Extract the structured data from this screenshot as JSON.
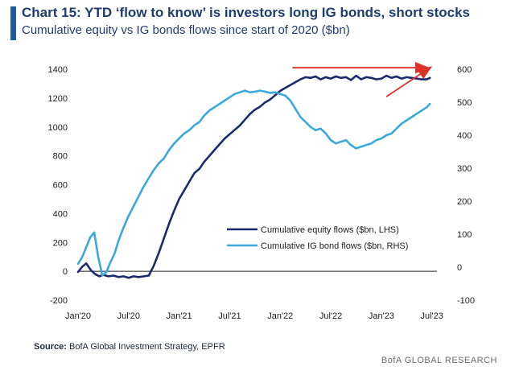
{
  "chart_data": {
    "type": "line",
    "title": "Chart 15: YTD ‘flow to know’ is investors long IG bonds, short stocks",
    "subtitle": "Cumulative equity vs IG bonds flows since start of 2020 ($bn)",
    "x_tick_labels": [
      "Jan'20",
      "Jul'20",
      "Jan'21",
      "Jul'21",
      "Jan'22",
      "Jul'22",
      "Jan'23",
      "Jul'23"
    ],
    "x_tick_positions": [
      2020.0,
      2020.5,
      2021.0,
      2021.5,
      2022.0,
      2022.5,
      2023.0,
      2023.5
    ],
    "xlim": [
      2020.0,
      2023.55
    ],
    "left_axis": {
      "ylim": [
        -200,
        1400
      ],
      "ticks": [
        -200,
        0,
        200,
        400,
        600,
        800,
        1000,
        1200,
        1400
      ]
    },
    "right_axis": {
      "ylim": [
        -100,
        600
      ],
      "ticks": [
        -100,
        0,
        100,
        200,
        300,
        400,
        500,
        600
      ]
    },
    "legend_position": "center-right",
    "grid": false,
    "series": [
      {
        "name": "Cumulative equity flows ($bn, LHS)",
        "axis": "left",
        "color": "#1b2a6b",
        "x": [
          2020.0,
          2020.04,
          2020.08,
          2020.13,
          2020.17,
          2020.21,
          2020.25,
          2020.3,
          2020.35,
          2020.4,
          2020.45,
          2020.5,
          2020.55,
          2020.6,
          2020.65,
          2020.7,
          2020.75,
          2020.8,
          2020.85,
          2020.9,
          2020.95,
          2021.0,
          2021.05,
          2021.1,
          2021.15,
          2021.2,
          2021.25,
          2021.3,
          2021.35,
          2021.4,
          2021.45,
          2021.5,
          2021.55,
          2021.6,
          2021.65,
          2021.7,
          2021.75,
          2021.8,
          2021.85,
          2021.9,
          2021.95,
          2022.0,
          2022.05,
          2022.1,
          2022.15,
          2022.2,
          2022.25,
          2022.3,
          2022.35,
          2022.4,
          2022.45,
          2022.5,
          2022.55,
          2022.6,
          2022.65,
          2022.7,
          2022.75,
          2022.8,
          2022.85,
          2022.9,
          2022.95,
          2023.0,
          2023.05,
          2023.1,
          2023.15,
          2023.2,
          2023.25,
          2023.3,
          2023.35,
          2023.4,
          2023.45,
          2023.48
        ],
        "values": [
          -5,
          30,
          55,
          5,
          -20,
          -35,
          -25,
          -35,
          -30,
          -40,
          -35,
          -45,
          -35,
          -40,
          -35,
          -30,
          40,
          130,
          230,
          330,
          420,
          500,
          560,
          620,
          680,
          710,
          760,
          800,
          840,
          880,
          920,
          950,
          980,
          1010,
          1050,
          1090,
          1120,
          1140,
          1170,
          1190,
          1220,
          1250,
          1270,
          1290,
          1310,
          1330,
          1345,
          1340,
          1350,
          1330,
          1345,
          1335,
          1350,
          1340,
          1345,
          1325,
          1355,
          1330,
          1345,
          1340,
          1330,
          1335,
          1355,
          1340,
          1350,
          1335,
          1345,
          1340,
          1335,
          1330,
          1330,
          1340
        ]
      },
      {
        "name": "Cumulative IG bond flows ($bn, RHS)",
        "axis": "right",
        "color": "#3aa8dd",
        "x": [
          2020.0,
          2020.04,
          2020.08,
          2020.12,
          2020.16,
          2020.2,
          2020.24,
          2020.28,
          2020.32,
          2020.36,
          2020.4,
          2020.45,
          2020.5,
          2020.55,
          2020.6,
          2020.65,
          2020.7,
          2020.75,
          2020.8,
          2020.85,
          2020.9,
          2020.95,
          2021.0,
          2021.05,
          2021.1,
          2021.15,
          2021.2,
          2021.25,
          2021.3,
          2021.35,
          2021.4,
          2021.45,
          2021.5,
          2021.55,
          2021.6,
          2021.65,
          2021.7,
          2021.75,
          2021.8,
          2021.85,
          2021.9,
          2021.95,
          2022.0,
          2022.05,
          2022.1,
          2022.15,
          2022.2,
          2022.25,
          2022.3,
          2022.35,
          2022.4,
          2022.45,
          2022.5,
          2022.55,
          2022.6,
          2022.65,
          2022.7,
          2022.75,
          2022.8,
          2022.85,
          2022.9,
          2022.95,
          2023.0,
          2023.05,
          2023.1,
          2023.15,
          2023.2,
          2023.25,
          2023.3,
          2023.35,
          2023.4,
          2023.45,
          2023.48
        ],
        "values": [
          10,
          30,
          60,
          90,
          105,
          30,
          -25,
          -15,
          15,
          40,
          80,
          120,
          155,
          185,
          215,
          245,
          270,
          295,
          315,
          330,
          355,
          375,
          390,
          405,
          415,
          430,
          440,
          460,
          475,
          485,
          495,
          505,
          515,
          525,
          530,
          535,
          530,
          532,
          535,
          532,
          528,
          530,
          525,
          520,
          505,
          480,
          455,
          440,
          425,
          415,
          420,
          405,
          385,
          375,
          380,
          385,
          370,
          360,
          365,
          370,
          375,
          385,
          390,
          400,
          405,
          420,
          435,
          445,
          455,
          465,
          475,
          485,
          495
        ]
      }
    ],
    "annotations": [
      {
        "type": "arrow",
        "color": "#e0302a",
        "description": "horizontal",
        "from": [
          2022.12,
          1410
        ],
        "to": [
          2023.45,
          1410
        ]
      },
      {
        "type": "arrow",
        "color": "#e0302a",
        "description": "upward",
        "from": [
          2023.05,
          1210
        ],
        "to": [
          2023.48,
          1410
        ]
      }
    ]
  },
  "source_label": "Source:",
  "source_text": " BofA Global Investment Strategy, EPFR",
  "footer": "BofA GLOBAL RESEARCH"
}
